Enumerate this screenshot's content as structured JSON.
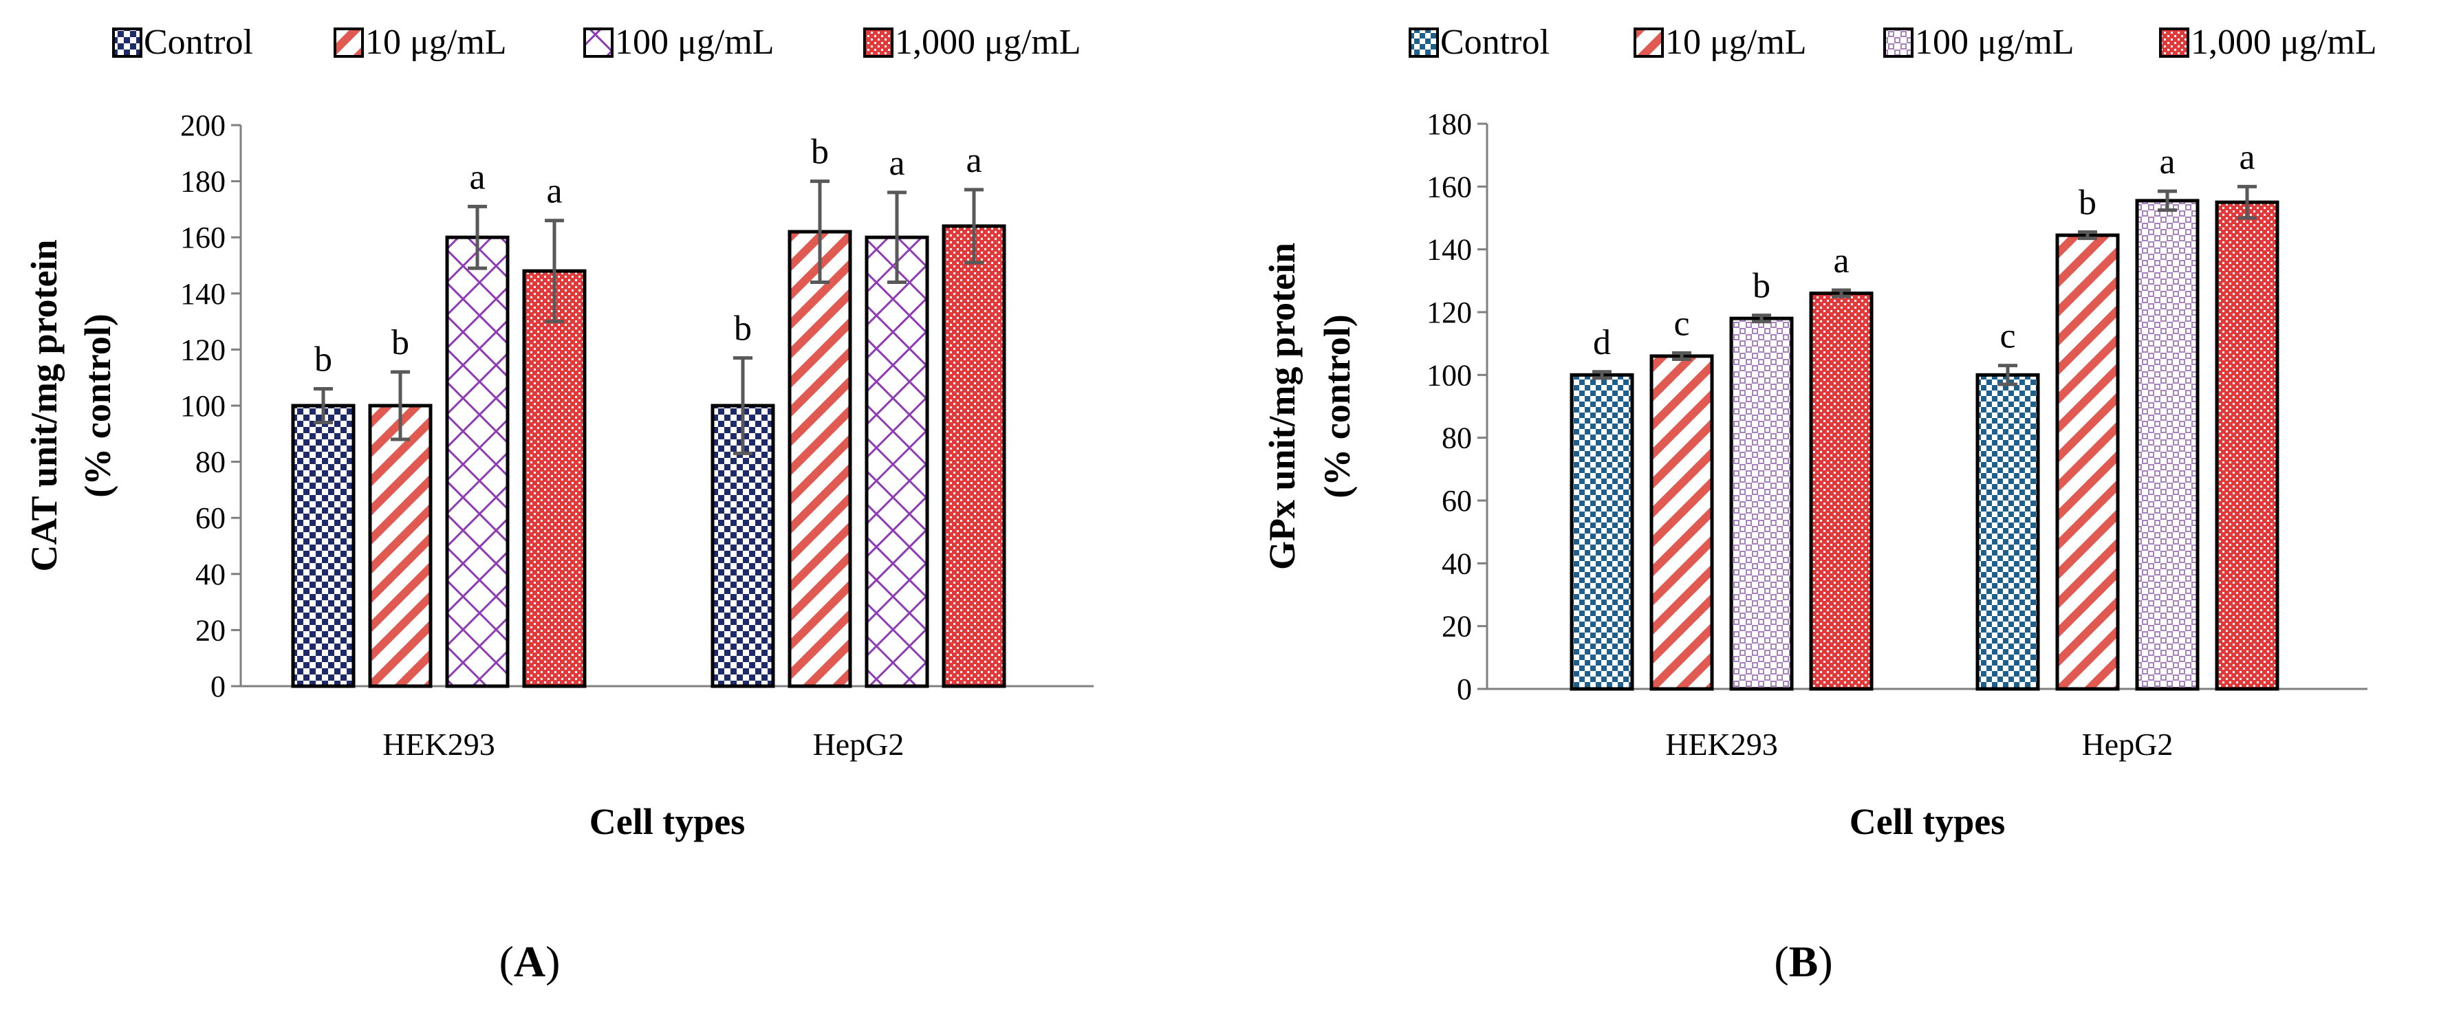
{
  "chart_data": [
    {
      "type": "bar",
      "panel": "A",
      "panel_label_letter": "A",
      "legend": [
        "Control",
        "10 μg/mL",
        "100 μg/mL",
        "1,000 μg/mL"
      ],
      "categories": [
        "HEK293",
        "HepG2"
      ],
      "series": [
        {
          "name": "Control",
          "values": [
            100,
            100
          ],
          "errors": [
            6,
            17
          ],
          "letters": [
            "b",
            "b"
          ]
        },
        {
          "name": "10 μg/mL",
          "values": [
            100,
            162
          ],
          "errors": [
            12,
            18
          ],
          "letters": [
            "b",
            "b"
          ]
        },
        {
          "name": "100 μg/mL",
          "values": [
            160,
            160
          ],
          "errors": [
            11,
            16
          ],
          "letters": [
            "a",
            "a"
          ]
        },
        {
          "name": "1,000 μg/mL",
          "values": [
            148,
            164
          ],
          "errors": [
            18,
            13
          ],
          "letters": [
            "a",
            "a"
          ]
        }
      ],
      "xlabel": "Cell types",
      "ylabel_line1": "CAT unit/mg protein",
      "ylabel_line2": "(% control)",
      "ylim": [
        0,
        200
      ],
      "ytick_step": 20,
      "yticks": [
        "0",
        "20",
        "40",
        "60",
        "80",
        "100",
        "120",
        "140",
        "160",
        "180",
        "200"
      ],
      "grid": false,
      "legend_position": "top",
      "colors": [
        "#1f2a6b",
        "#e05a52",
        "#8e3bb5",
        "#e23a3a"
      ]
    },
    {
      "type": "bar",
      "panel": "B",
      "panel_label_letter": "B",
      "legend": [
        "Control",
        "10 μg/mL",
        "100 μg/mL",
        "1,000 μg/mL"
      ],
      "categories": [
        "HEK293",
        "HepG2"
      ],
      "series": [
        {
          "name": "Control",
          "values": [
            100,
            100
          ],
          "errors": [
            1,
            3
          ],
          "letters": [
            "d",
            "c"
          ]
        },
        {
          "name": "10 μg/mL",
          "values": [
            106,
            144.5
          ],
          "errors": [
            1,
            1
          ],
          "letters": [
            "c",
            "b"
          ]
        },
        {
          "name": "100 μg/mL",
          "values": [
            118,
            155.5
          ],
          "errors": [
            1,
            3
          ],
          "letters": [
            "b",
            "a"
          ]
        },
        {
          "name": "1,000 μg/mL",
          "values": [
            126,
            155
          ],
          "errors": [
            1,
            5
          ],
          "letters": [
            "a",
            "a"
          ]
        }
      ],
      "xlabel": "Cell types",
      "ylabel_line1": "GPx unit/mg protein",
      "ylabel_line2": "(% control)",
      "ylim": [
        0,
        180
      ],
      "ytick_step": 20,
      "yticks": [
        "0",
        "20",
        "40",
        "60",
        "80",
        "100",
        "120",
        "140",
        "160",
        "180"
      ],
      "grid": false,
      "legend_position": "top",
      "colors": [
        "#1f5f8b",
        "#e05a52",
        "#9a6bb0",
        "#e23a3a"
      ]
    }
  ]
}
